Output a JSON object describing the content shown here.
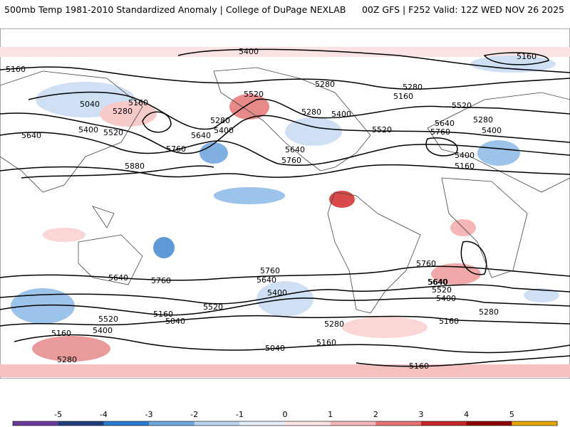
{
  "header": {
    "left": "500mb Temp 1981-2010 Standardized Anomaly | College of DuPage NEXLAB",
    "right": "00Z GFS | F252 Valid: 12Z WED NOV 26 2025"
  },
  "contour_labels": [
    "5400",
    "5160",
    "5040",
    "5280",
    "5160",
    "5400",
    "5520",
    "5640",
    "5520",
    "5160",
    "5280",
    "5400",
    "5640",
    "5760",
    "5880",
    "5280",
    "5400",
    "5640",
    "5760",
    "5160",
    "5280",
    "5520",
    "5280",
    "5400",
    "5520",
    "5640",
    "5760",
    "5400",
    "5160",
    "5280",
    "5640",
    "5760",
    "5640",
    "5760",
    "5760",
    "5640",
    "5400",
    "5520",
    "5280",
    "5160",
    "5040",
    "5400",
    "5520",
    "5160",
    "5280",
    "5040",
    "5160",
    "5640",
    "5520",
    "5400",
    "5280",
    "5160",
    "5160"
  ],
  "colorbar": {
    "ticks": [
      "-5",
      "-4",
      "-3",
      "-2",
      "-1",
      "0",
      "1",
      "2",
      "3",
      "4",
      "5"
    ],
    "colors": [
      "#6a3d9a",
      "#1f3f7a",
      "#2b7ccf",
      "#6fa8dc",
      "#b9d3ee",
      "#e6eef8",
      "#fde4e4",
      "#f4b6b6",
      "#e57373",
      "#c62828",
      "#8b0000",
      "#e6a800"
    ]
  },
  "colors": {
    "anom_warm": "#f4b6b6",
    "anom_cold": "#9cc3ea",
    "contour": "#000000",
    "coast": "#444444"
  }
}
